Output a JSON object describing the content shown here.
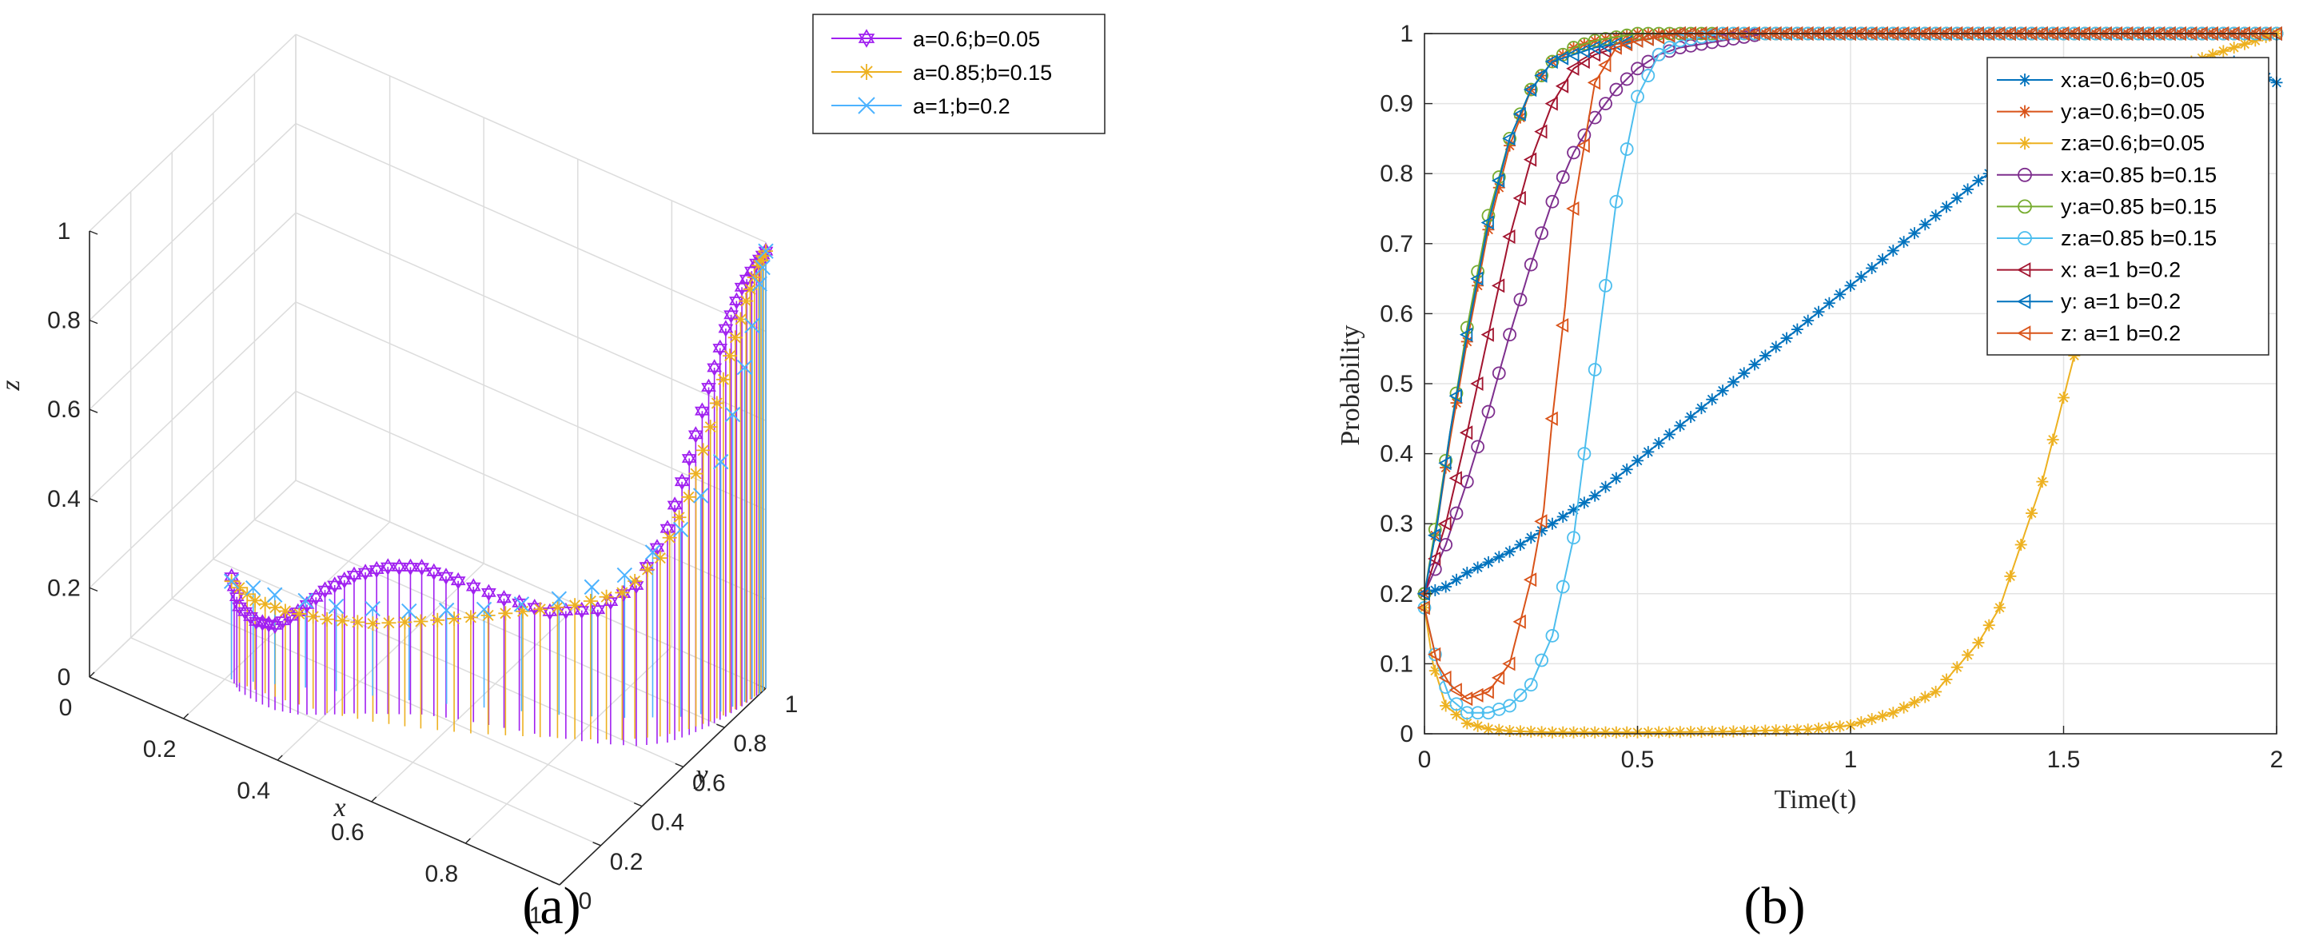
{
  "chart_data": [
    {
      "type": "line",
      "panel_label": "(a)",
      "projection": "3d",
      "xlabel": "x",
      "ylabel": "y",
      "zlabel": "z",
      "xlim": [
        0,
        1
      ],
      "ylim": [
        0,
        1
      ],
      "zlim": [
        0,
        1
      ],
      "x_ticks": [
        "0",
        "0.2",
        "0.4",
        "0.6",
        "0.8",
        "1"
      ],
      "y_ticks": [
        "0",
        "0.2",
        "0.4",
        "0.6",
        "0.8",
        "1"
      ],
      "z_ticks": [
        "0",
        "0.2",
        "0.4",
        "0.6",
        "0.8",
        "1"
      ],
      "grid": true,
      "legend_position": "outside-top-right",
      "series": [
        {
          "name": "a=0.6;b=0.05",
          "color": "#a020f0",
          "marker": "hexagram",
          "stems": true,
          "points": [
            [
              0.21,
              0.21,
              0.23
            ],
            [
              0.24,
              0.18,
              0.19
            ],
            [
              0.28,
              0.17,
              0.18
            ],
            [
              0.32,
              0.17,
              0.19
            ],
            [
              0.36,
              0.19,
              0.23
            ],
            [
              0.4,
              0.23,
              0.28
            ],
            [
              0.44,
              0.28,
              0.31
            ],
            [
              0.49,
              0.33,
              0.33
            ],
            [
              0.54,
              0.38,
              0.33
            ],
            [
              0.6,
              0.42,
              0.31
            ],
            [
              0.68,
              0.46,
              0.29
            ],
            [
              0.76,
              0.5,
              0.28
            ],
            [
              0.84,
              0.55,
              0.3
            ],
            [
              0.9,
              0.6,
              0.36
            ],
            [
              0.94,
              0.66,
              0.48
            ],
            [
              0.96,
              0.72,
              0.62
            ],
            [
              0.975,
              0.78,
              0.76
            ],
            [
              0.985,
              0.84,
              0.87
            ],
            [
              0.993,
              0.9,
              0.94
            ],
            [
              0.998,
              0.96,
              0.97
            ],
            [
              1.0,
              1.0,
              0.98
            ]
          ]
        },
        {
          "name": "a=0.85;b=0.15",
          "color": "#edb120",
          "marker": "asterisk",
          "stems": true,
          "points": [
            [
              0.21,
              0.21,
              0.22
            ],
            [
              0.26,
              0.21,
              0.2
            ],
            [
              0.32,
              0.22,
              0.2
            ],
            [
              0.4,
              0.24,
              0.21
            ],
            [
              0.48,
              0.28,
              0.22
            ],
            [
              0.56,
              0.33,
              0.24
            ],
            [
              0.64,
              0.39,
              0.26
            ],
            [
              0.72,
              0.46,
              0.28
            ],
            [
              0.8,
              0.53,
              0.3
            ],
            [
              0.87,
              0.6,
              0.33
            ],
            [
              0.92,
              0.67,
              0.4
            ],
            [
              0.95,
              0.74,
              0.52
            ],
            [
              0.97,
              0.8,
              0.66
            ],
            [
              0.985,
              0.86,
              0.8
            ],
            [
              0.993,
              0.92,
              0.9
            ],
            [
              0.998,
              0.97,
              0.96
            ],
            [
              1.0,
              1.0,
              0.98
            ]
          ]
        },
        {
          "name": "a=1;b=0.2",
          "color": "#4db3ff",
          "marker": "x",
          "stems": true,
          "points": [
            [
              0.21,
              0.21,
              0.22
            ],
            [
              0.28,
              0.26,
              0.2
            ],
            [
              0.38,
              0.33,
              0.19
            ],
            [
              0.5,
              0.41,
              0.2
            ],
            [
              0.62,
              0.5,
              0.22
            ],
            [
              0.74,
              0.59,
              0.26
            ],
            [
              0.84,
              0.68,
              0.32
            ],
            [
              0.92,
              0.77,
              0.42
            ],
            [
              0.97,
              0.85,
              0.56
            ],
            [
              0.99,
              0.92,
              0.75
            ],
            [
              1.0,
              0.97,
              0.92
            ],
            [
              1.0,
              1.0,
              0.98
            ]
          ]
        }
      ]
    },
    {
      "type": "line",
      "panel_label": "(b)",
      "xlabel": "Time(t)",
      "ylabel": "Probability",
      "xlim": [
        0,
        2
      ],
      "ylim": [
        0,
        1
      ],
      "x_ticks": [
        "0",
        "0.5",
        "1",
        "1.5",
        "2"
      ],
      "y_ticks": [
        "0",
        "0.1",
        "0.2",
        "0.3",
        "0.4",
        "0.5",
        "0.6",
        "0.7",
        "0.8",
        "0.9",
        "1"
      ],
      "grid": true,
      "legend_position": "top-right",
      "series": [
        {
          "name": "x:a=0.6;b=0.05",
          "color": "#0072bd",
          "marker": "asterisk",
          "x": [
            0,
            0.05,
            0.1,
            0.2,
            0.3,
            0.4,
            0.5,
            0.6,
            0.7,
            0.8,
            0.9,
            1.0,
            1.1,
            1.2,
            1.3,
            1.4,
            1.5,
            1.6,
            1.7,
            1.8,
            1.9,
            2.0
          ],
          "y": [
            0.2,
            0.21,
            0.23,
            0.26,
            0.3,
            0.34,
            0.39,
            0.44,
            0.49,
            0.54,
            0.59,
            0.64,
            0.69,
            0.74,
            0.79,
            0.83,
            0.87,
            0.9,
            0.92,
            0.94,
            0.96,
            0.93
          ]
        },
        {
          "name": "y:a=0.6;b=0.05",
          "color": "#d95319",
          "marker": "asterisk",
          "x": [
            0,
            0.03,
            0.06,
            0.1,
            0.15,
            0.2,
            0.25,
            0.3,
            0.35,
            0.4,
            0.5,
            0.6,
            0.8,
            1.0,
            1.5,
            2.0
          ],
          "y": [
            0.2,
            0.3,
            0.42,
            0.56,
            0.72,
            0.84,
            0.92,
            0.96,
            0.98,
            0.99,
            1.0,
            1.0,
            1.0,
            1.0,
            1.0,
            1.0
          ]
        },
        {
          "name": "z:a=0.6;b=0.05",
          "color": "#edb120",
          "marker": "asterisk",
          "x": [
            0,
            0.02,
            0.05,
            0.1,
            0.15,
            0.2,
            0.3,
            0.5,
            0.7,
            0.9,
            1.0,
            1.1,
            1.2,
            1.3,
            1.35,
            1.4,
            1.45,
            1.5,
            1.55,
            1.6,
            1.7,
            1.8,
            2.0
          ],
          "y": [
            0.18,
            0.1,
            0.04,
            0.015,
            0.007,
            0.004,
            0.002,
            0.002,
            0.003,
            0.006,
            0.012,
            0.03,
            0.06,
            0.13,
            0.18,
            0.27,
            0.36,
            0.48,
            0.6,
            0.72,
            0.88,
            0.96,
            1.0
          ]
        },
        {
          "name": "x:a=0.85 b=0.15",
          "color": "#7e2f8e",
          "marker": "circle",
          "x": [
            0,
            0.05,
            0.1,
            0.15,
            0.2,
            0.25,
            0.3,
            0.35,
            0.4,
            0.45,
            0.5,
            0.55,
            0.6,
            0.7,
            0.8,
            1.0,
            1.5,
            2.0
          ],
          "y": [
            0.2,
            0.27,
            0.36,
            0.46,
            0.57,
            0.67,
            0.76,
            0.83,
            0.88,
            0.92,
            0.95,
            0.97,
            0.98,
            0.99,
            1.0,
            1.0,
            1.0,
            1.0
          ]
        },
        {
          "name": "y:a=0.85 b=0.15",
          "color": "#77ac30",
          "marker": "circle",
          "x": [
            0,
            0.03,
            0.06,
            0.1,
            0.15,
            0.2,
            0.25,
            0.3,
            0.35,
            0.4,
            0.5,
            0.6,
            0.8,
            1.0,
            1.5,
            2.0
          ],
          "y": [
            0.2,
            0.31,
            0.43,
            0.58,
            0.74,
            0.85,
            0.92,
            0.96,
            0.98,
            0.99,
            1.0,
            1.0,
            1.0,
            1.0,
            1.0,
            1.0
          ]
        },
        {
          "name": "z:a=0.85 b=0.15",
          "color": "#4dbeee",
          "marker": "circle",
          "x": [
            0,
            0.03,
            0.06,
            0.1,
            0.15,
            0.2,
            0.25,
            0.3,
            0.35,
            0.4,
            0.45,
            0.5,
            0.55,
            0.6,
            0.7,
            0.8,
            1.0,
            1.5,
            2.0
          ],
          "y": [
            0.18,
            0.1,
            0.05,
            0.03,
            0.03,
            0.04,
            0.07,
            0.14,
            0.28,
            0.52,
            0.76,
            0.91,
            0.97,
            0.99,
            1.0,
            1.0,
            1.0,
            1.0,
            1.0
          ]
        },
        {
          "name": "x:  a=1 b=0.2",
          "color": "#a2142f",
          "marker": "triangle-left",
          "x": [
            0,
            0.05,
            0.1,
            0.15,
            0.2,
            0.25,
            0.3,
            0.35,
            0.4,
            0.45,
            0.5,
            0.6,
            0.8,
            1.0,
            1.5,
            2.0
          ],
          "y": [
            0.2,
            0.3,
            0.43,
            0.57,
            0.71,
            0.82,
            0.9,
            0.95,
            0.97,
            0.98,
            0.99,
            1.0,
            1.0,
            1.0,
            1.0,
            1.0
          ]
        },
        {
          "name": "y:  a=1 b=0.2",
          "color": "#0072bd",
          "marker": "triangle-left",
          "x": [
            0,
            0.03,
            0.06,
            0.1,
            0.15,
            0.2,
            0.25,
            0.3,
            0.35,
            0.4,
            0.5,
            0.6,
            0.8,
            1.0,
            1.5,
            2.0
          ],
          "y": [
            0.2,
            0.3,
            0.43,
            0.57,
            0.73,
            0.85,
            0.92,
            0.96,
            0.97,
            0.98,
            0.99,
            1.0,
            1.0,
            1.0,
            1.0,
            1.0
          ]
        },
        {
          "name": "z:  a=1 b=0.2",
          "color": "#d95319",
          "marker": "triangle-left",
          "x": [
            0,
            0.03,
            0.06,
            0.1,
            0.15,
            0.2,
            0.25,
            0.28,
            0.3,
            0.33,
            0.35,
            0.4,
            0.45,
            0.5,
            0.6,
            0.8,
            1.0,
            1.5,
            2.0
          ],
          "y": [
            0.18,
            0.1,
            0.07,
            0.05,
            0.06,
            0.1,
            0.22,
            0.32,
            0.45,
            0.61,
            0.75,
            0.93,
            0.98,
            0.99,
            1.0,
            1.0,
            1.0,
            1.0,
            1.0
          ]
        }
      ]
    }
  ]
}
